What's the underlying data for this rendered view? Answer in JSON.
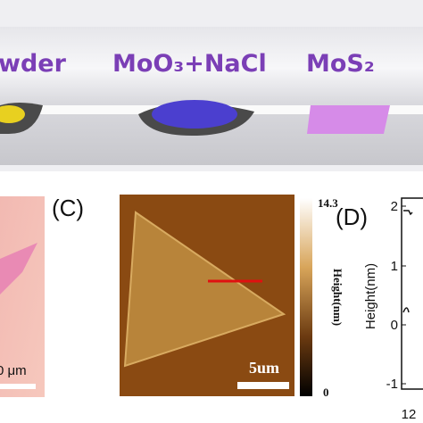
{
  "panel_top": {
    "labels": [
      "wder",
      "MoO₃+NaCl",
      "MoS₂"
    ]
  },
  "panel_b": {
    "scale_label": "0 μm"
  },
  "panel_c": {
    "label": "(C)",
    "colorbar_max": "14.3",
    "colorbar_min": "0",
    "colorbar_title": "Height(nm)",
    "scale_label": "5um"
  },
  "panel_d": {
    "label": "(D)",
    "y_title": "Height(nm)",
    "y_ticks": [
      "2",
      "1",
      "0",
      "-1"
    ],
    "x_ticks": [
      "12"
    ]
  }
}
